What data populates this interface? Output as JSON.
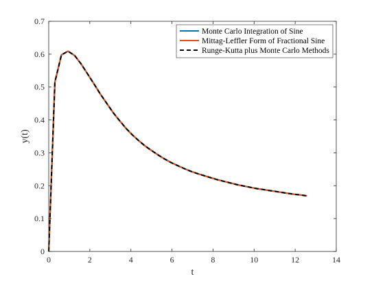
{
  "chart_data": {
    "type": "line",
    "xlabel": "t",
    "ylabel": "y(t)",
    "xlim": [
      0,
      14
    ],
    "ylim": [
      0,
      0.7
    ],
    "xticks": [
      "0",
      "2",
      "4",
      "6",
      "8",
      "10",
      "12",
      "14"
    ],
    "yticks": [
      "0",
      "0.1",
      "0.2",
      "0.3",
      "0.4",
      "0.5",
      "0.6",
      "0.7"
    ],
    "grid": false,
    "legend_position": "top-right",
    "series": [
      {
        "name": "Monte Carlo Integration of Sine",
        "color": "#0072BD",
        "style": "solid",
        "x": [
          0,
          0.3,
          0.62,
          0.94,
          1.26,
          1.57,
          1.88,
          2.2,
          2.51,
          2.83,
          3.14,
          3.46,
          3.77,
          4.08,
          4.4,
          4.71,
          5.03,
          5.34,
          5.65,
          5.97,
          6.28,
          6.6,
          6.91,
          7.23,
          7.54,
          7.85,
          8.17,
          8.48,
          8.8,
          9.11,
          9.42,
          9.74,
          10.05,
          10.37,
          10.68,
          11.0,
          11.31,
          11.62,
          11.94,
          12.25,
          12.57
        ],
        "y": [
          0,
          0.515,
          0.598,
          0.609,
          0.596,
          0.571,
          0.541,
          0.51,
          0.479,
          0.45,
          0.422,
          0.397,
          0.374,
          0.354,
          0.336,
          0.32,
          0.306,
          0.293,
          0.281,
          0.27,
          0.261,
          0.252,
          0.244,
          0.237,
          0.231,
          0.225,
          0.219,
          0.214,
          0.209,
          0.204,
          0.2,
          0.196,
          0.192,
          0.189,
          0.186,
          0.183,
          0.18,
          0.177,
          0.174,
          0.172,
          0.169
        ]
      },
      {
        "name": "Mittag-Leffler Form of Fractional Sine",
        "color": "#D95319",
        "style": "solid",
        "x": [
          0,
          0.3,
          0.62,
          0.94,
          1.26,
          1.57,
          1.88,
          2.2,
          2.51,
          2.83,
          3.14,
          3.46,
          3.77,
          4.08,
          4.4,
          4.71,
          5.03,
          5.34,
          5.65,
          5.97,
          6.28,
          6.6,
          6.91,
          7.23,
          7.54,
          7.85,
          8.17,
          8.48,
          8.8,
          9.11,
          9.42,
          9.74,
          10.05,
          10.37,
          10.68,
          11.0,
          11.31,
          11.62,
          11.94,
          12.25,
          12.57
        ],
        "y": [
          0,
          0.515,
          0.598,
          0.609,
          0.596,
          0.571,
          0.541,
          0.51,
          0.479,
          0.45,
          0.422,
          0.397,
          0.374,
          0.354,
          0.336,
          0.32,
          0.306,
          0.293,
          0.281,
          0.27,
          0.261,
          0.252,
          0.244,
          0.237,
          0.231,
          0.225,
          0.219,
          0.214,
          0.209,
          0.204,
          0.2,
          0.196,
          0.192,
          0.189,
          0.186,
          0.183,
          0.18,
          0.177,
          0.174,
          0.172,
          0.169
        ]
      },
      {
        "name": "Runge-Kutta plus Monte Carlo Methods",
        "color": "#000000",
        "style": "dashed",
        "x": [
          0,
          0.3,
          0.62,
          0.94,
          1.26,
          1.57,
          1.88,
          2.2,
          2.51,
          2.83,
          3.14,
          3.46,
          3.77,
          4.08,
          4.4,
          4.71,
          5.03,
          5.34,
          5.65,
          5.97,
          6.28,
          6.6,
          6.91,
          7.23,
          7.54,
          7.85,
          8.17,
          8.48,
          8.8,
          9.11,
          9.42,
          9.74,
          10.05,
          10.37,
          10.68,
          11.0,
          11.31,
          11.62,
          11.94,
          12.25,
          12.57
        ],
        "y": [
          0,
          0.515,
          0.598,
          0.609,
          0.596,
          0.571,
          0.541,
          0.51,
          0.479,
          0.45,
          0.422,
          0.397,
          0.374,
          0.354,
          0.336,
          0.32,
          0.306,
          0.293,
          0.281,
          0.27,
          0.261,
          0.252,
          0.244,
          0.237,
          0.231,
          0.225,
          0.219,
          0.214,
          0.209,
          0.204,
          0.2,
          0.196,
          0.192,
          0.189,
          0.186,
          0.183,
          0.18,
          0.177,
          0.174,
          0.172,
          0.169
        ]
      }
    ]
  }
}
